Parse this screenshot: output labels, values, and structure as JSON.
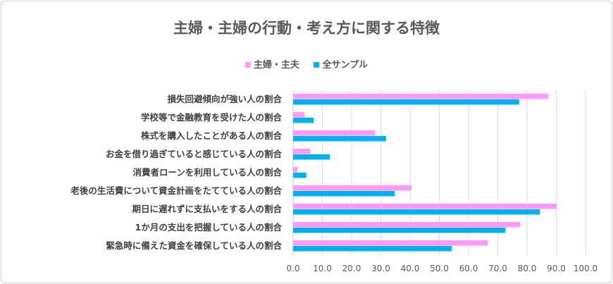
{
  "chart_data": {
    "type": "bar",
    "orientation": "horizontal",
    "title": "主婦・主婦の行動・考え方に関する特徴",
    "categories": [
      "損失回避傾向が強い人の割合",
      "学校等で金融教育を受けた人の割合",
      "株式を購入したことがある人の割合",
      "お金を借り過ぎていると感じている人の割合",
      "消費者ローンを利用している人の割合",
      "老後の生活費について資金計画をたてている人の割合",
      "期日に遅れずに支払いをする人の割合",
      "1か月の支出を把握している人の割合",
      "緊急時に備えた資金を確保している人の割合"
    ],
    "series": [
      {
        "name": "主婦・主夫",
        "color": "#ff99ff",
        "values": [
          87.2,
          3.9,
          28.1,
          5.9,
          1.5,
          40.5,
          90.1,
          77.6,
          66.6
        ]
      },
      {
        "name": "全サンプル",
        "color": "#00b0f0",
        "values": [
          77.3,
          7.0,
          31.8,
          12.6,
          4.5,
          34.8,
          84.4,
          72.6,
          54.3
        ]
      }
    ],
    "xlim": [
      0,
      100
    ],
    "xticks": [
      "0.0",
      "10.0",
      "20.0",
      "30.0",
      "40.0",
      "50.0",
      "60.0",
      "70.0",
      "80.0",
      "90.0",
      "100.0"
    ],
    "grid": "vertical",
    "legend": "top"
  }
}
